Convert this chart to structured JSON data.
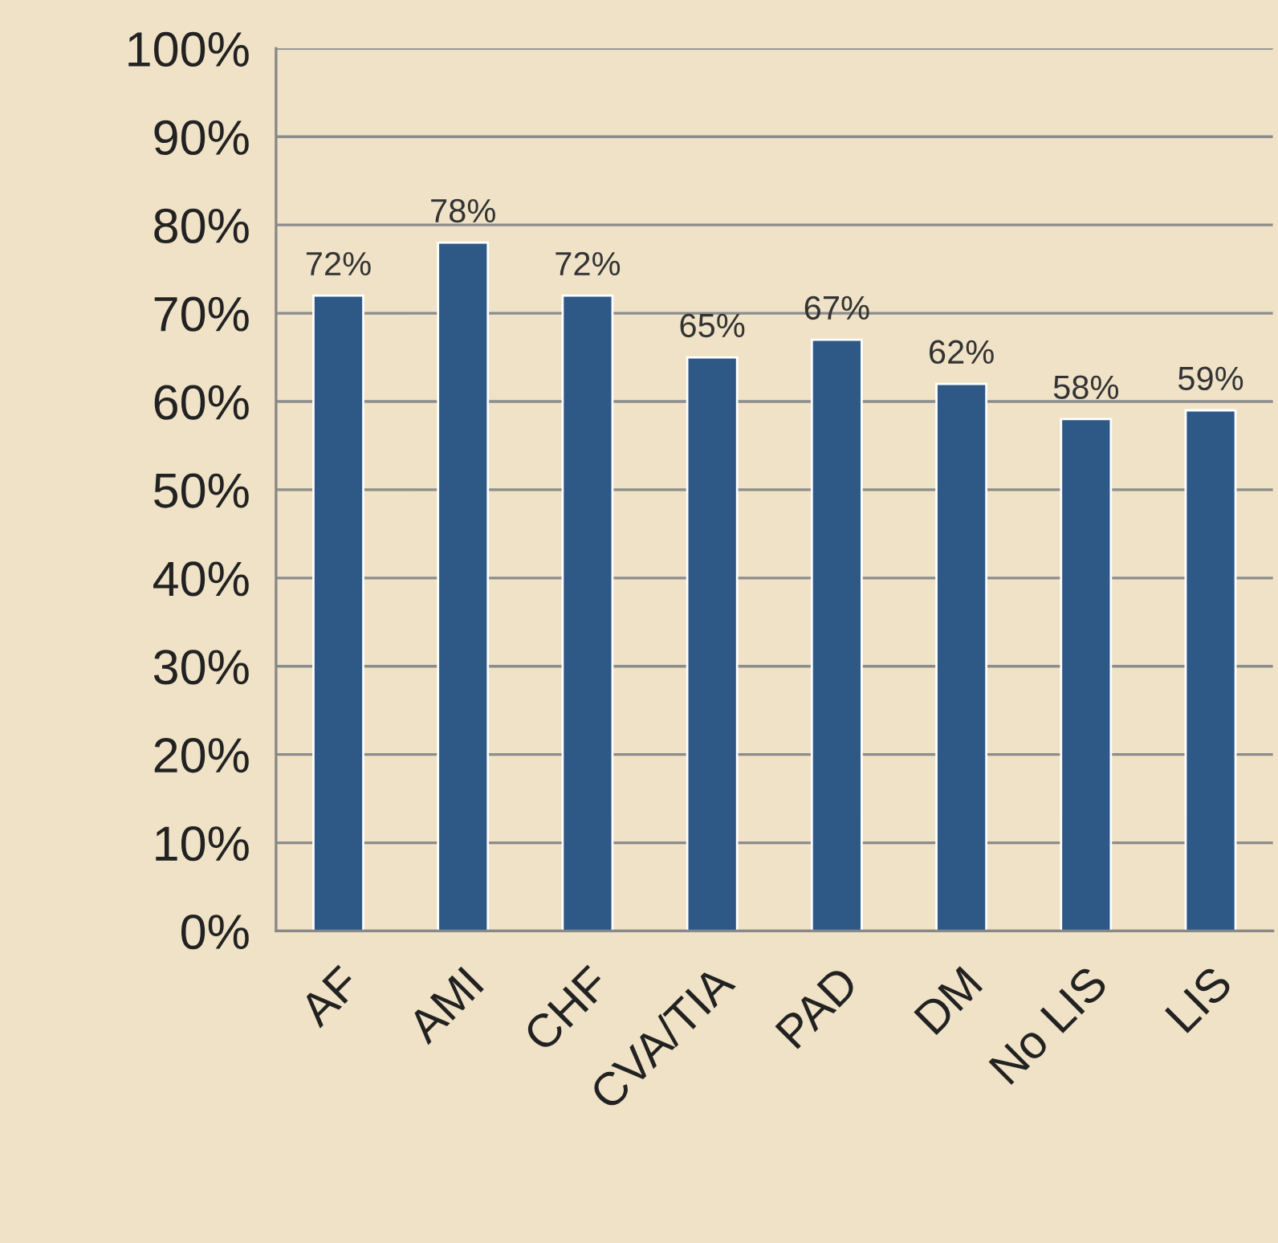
{
  "chart_data": {
    "type": "bar",
    "categories": [
      "AF",
      "AMI",
      "CHF",
      "CVA/TIA",
      "PAD",
      "DM",
      "No LIS",
      "LIS"
    ],
    "values": [
      72,
      78,
      72,
      65,
      67,
      62,
      58,
      59
    ],
    "value_labels": [
      "72%",
      "78%",
      "72%",
      "65%",
      "67%",
      "62%",
      "58%",
      "59%"
    ],
    "color": "#2e5987",
    "ylim": [
      0,
      100
    ],
    "yticks": [
      {
        "value": 0,
        "label": "0%"
      },
      {
        "value": 10,
        "label": "10%"
      },
      {
        "value": 20,
        "label": "20%"
      },
      {
        "value": 30,
        "label": "30%"
      },
      {
        "value": 40,
        "label": "40%"
      },
      {
        "value": 50,
        "label": "50%"
      },
      {
        "value": 60,
        "label": "60%"
      },
      {
        "value": 70,
        "label": "70%"
      },
      {
        "value": 80,
        "label": "80%"
      },
      {
        "value": 90,
        "label": "90%"
      },
      {
        "value": 100,
        "label": "100%"
      }
    ],
    "grid": "y",
    "legend": false
  }
}
